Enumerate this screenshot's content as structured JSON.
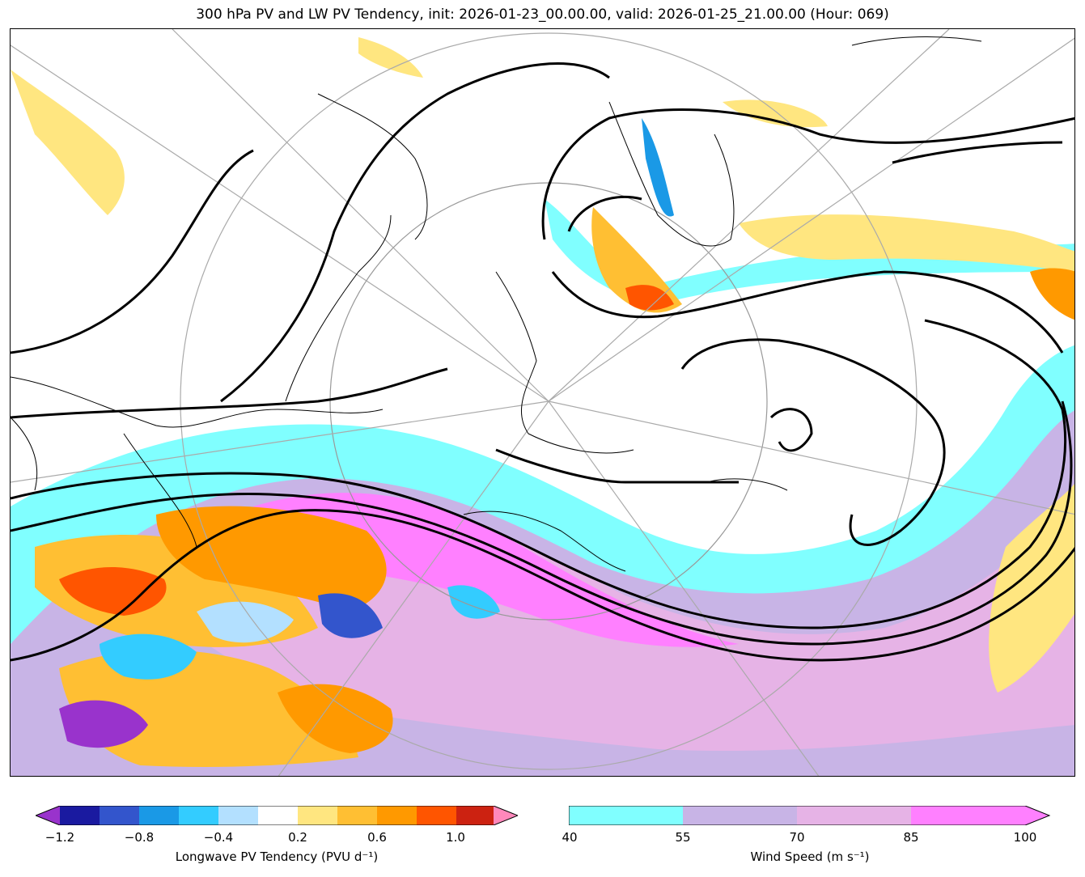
{
  "title": "300 hPa PV and LW PV Tendency, init: 2026-01-23_00.00.00, valid: 2026-01-25_21.00.00 (Hour: 069)",
  "colorbars": {
    "pv_tendency": {
      "label": "Longwave PV Tendency (PVU d⁻¹)",
      "ticks": [
        "−1.2",
        "−0.8",
        "−0.4",
        "0.2",
        "0.6",
        "1.0"
      ],
      "colors": [
        "#1a1aa0",
        "#3355cc",
        "#1a99e6",
        "#33ccff",
        "#b3e0ff",
        "#ffffff",
        "#ffe680",
        "#ffbf33",
        "#ff9900",
        "#ff5500",
        "#cc2211"
      ],
      "under_color": "#9933cc",
      "over_color": "#ff88bb"
    },
    "wind_speed": {
      "label": "Wind Speed (m s⁻¹)",
      "ticks": [
        "40",
        "55",
        "70",
        "85",
        "100"
      ],
      "colors": [
        "#80ffff",
        "#c8b4e6",
        "#e6b3e6",
        "#ff80ff"
      ]
    }
  }
}
